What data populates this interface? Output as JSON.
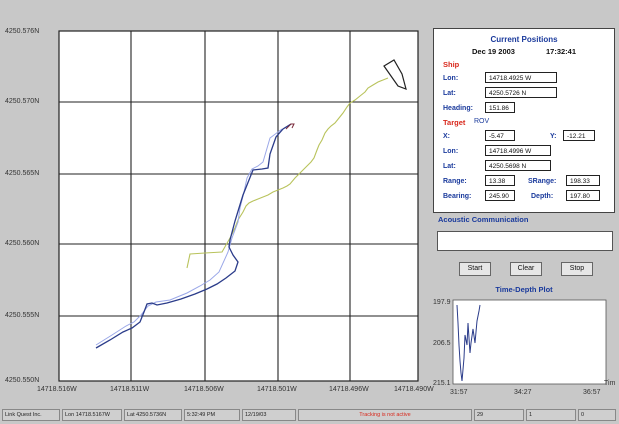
{
  "map": {
    "y_labels": [
      "4250.576N",
      "4250.570N",
      "4250.565N",
      "4250.560N",
      "4250.555N",
      "4250.550N"
    ],
    "x_labels": [
      "14718.516W",
      "14718.511W",
      "14718.506W",
      "14718.501W",
      "14718.496W",
      "14718.490W"
    ],
    "colors": {
      "ship_track": "#b9c35c",
      "target_track": "#2b3c8a",
      "target_track_light": "#9aa7e8",
      "ship_marker": "#222222",
      "target_marker": "#7a2a3a",
      "grid": "#222222"
    }
  },
  "current_positions": {
    "title": "Current Positions",
    "date": "Dec 19 2003",
    "time": "17:32:41",
    "ship_heading_label": "Ship",
    "ship": {
      "lon_label": "Lon:",
      "lon": "14718.4925 W",
      "lat_label": "Lat:",
      "lat": "4250.5726 N",
      "heading_label": "Heading:",
      "heading": "151.86"
    },
    "target_label": "Target",
    "target_name": "ROV",
    "target": {
      "x_label": "X:",
      "x": "-5.47",
      "y_label": "Y:",
      "y": "-12.21",
      "lon_label": "Lon:",
      "lon": "14718.4996 W",
      "lat_label": "Lat:",
      "lat": "4250.5698 N",
      "range_label": "Range:",
      "range": "13.38",
      "srange_label": "SRange:",
      "srange": "198.33",
      "bearing_label": "Bearing:",
      "bearing": "245.90",
      "depth_label": "Depth:",
      "depth": "197.80"
    }
  },
  "acoustic": {
    "label": "Acoustic Communication",
    "value": ""
  },
  "buttons": {
    "start": "Start",
    "clear": "Clear",
    "stop": "Stop"
  },
  "depth_plot": {
    "title": "Time-Depth Plot",
    "y_ticks": [
      "197.9",
      "206.5",
      "215.1"
    ],
    "x_ticks": [
      "31:57",
      "34:27",
      "36:57"
    ],
    "x_axis_label": "Tim"
  },
  "status_bar": {
    "company": "Link Quest Inc.",
    "lon": "Lon 14718.5167W",
    "lat": "Lat 4250.5736N",
    "time": "5:32:49 PM",
    "date": "12/19/03",
    "tracking": "Tracking is not active",
    "count": "29",
    "field2": "1",
    "field3": "0",
    "tracking_color": "#d8281c"
  }
}
